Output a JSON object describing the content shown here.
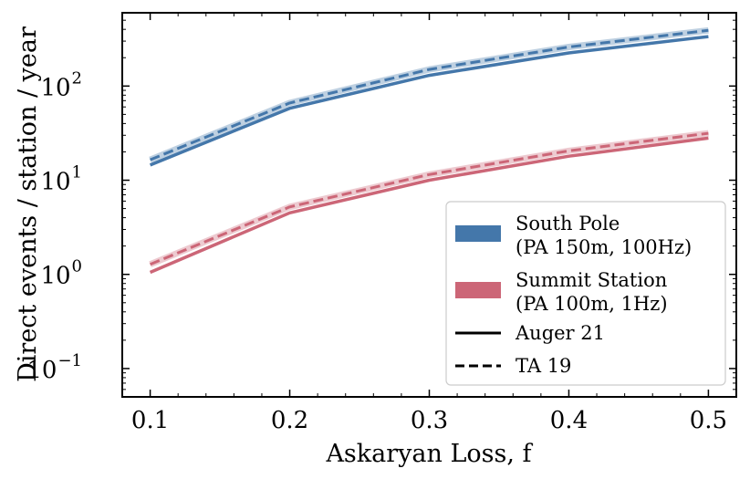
{
  "chart_data": {
    "type": "line",
    "xlabel": "Askaryan Loss, f",
    "ylabel": "Direct events / station / year",
    "xlim": [
      0.08,
      0.52
    ],
    "ylim": [
      0.05,
      600
    ],
    "yscale": "log",
    "x_ticks": [
      0.1,
      0.2,
      0.3,
      0.4,
      0.5
    ],
    "x_tick_labels": [
      "0.1",
      "0.2",
      "0.3",
      "0.4",
      "0.5"
    ],
    "y_ticks": [
      0.1,
      1,
      10,
      100
    ],
    "y_tick_labels": [
      {
        "base": "10",
        "exp": "−1"
      },
      {
        "base": "10",
        "exp": "0"
      },
      {
        "base": "10",
        "exp": "1"
      },
      {
        "base": "10",
        "exp": "2"
      }
    ],
    "grid": false,
    "legend_position": "lower-right",
    "x": [
      0.1,
      0.2,
      0.3,
      0.4,
      0.5
    ],
    "series": [
      {
        "key": "south_pole_auger",
        "site": "South Pole",
        "model": "Auger 21",
        "color": "#4477aa",
        "style": "solid",
        "values": [
          14.5,
          58,
          130,
          225,
          335
        ]
      },
      {
        "key": "south_pole_ta",
        "site": "South Pole",
        "model": "TA 19",
        "color": "#4477aa",
        "style": "dashed",
        "values": [
          16.5,
          66,
          150,
          260,
          390
        ]
      },
      {
        "key": "summit_auger",
        "site": "Summit Station",
        "model": "Auger 21",
        "color": "#cc6677",
        "style": "solid",
        "values": [
          1.05,
          4.5,
          10,
          18,
          28
        ]
      },
      {
        "key": "summit_ta",
        "site": "Summit Station",
        "model": "TA 19",
        "color": "#cc6677",
        "style": "dashed",
        "values": [
          1.28,
          5.2,
          11.5,
          20.5,
          31.5
        ]
      }
    ],
    "legend": {
      "entries": [
        {
          "swatch": "color",
          "color": "#4477aa",
          "lines": [
            "South Pole",
            "(PA 150m, 100Hz)"
          ]
        },
        {
          "swatch": "color",
          "color": "#cc6677",
          "lines": [
            "Summit Station",
            "(PA 100m, 1Hz)"
          ]
        },
        {
          "swatch": "solid",
          "color": "#000000",
          "lines": [
            "Auger 21"
          ]
        },
        {
          "swatch": "dashed",
          "color": "#000000",
          "lines": [
            "TA 19"
          ]
        }
      ]
    }
  }
}
